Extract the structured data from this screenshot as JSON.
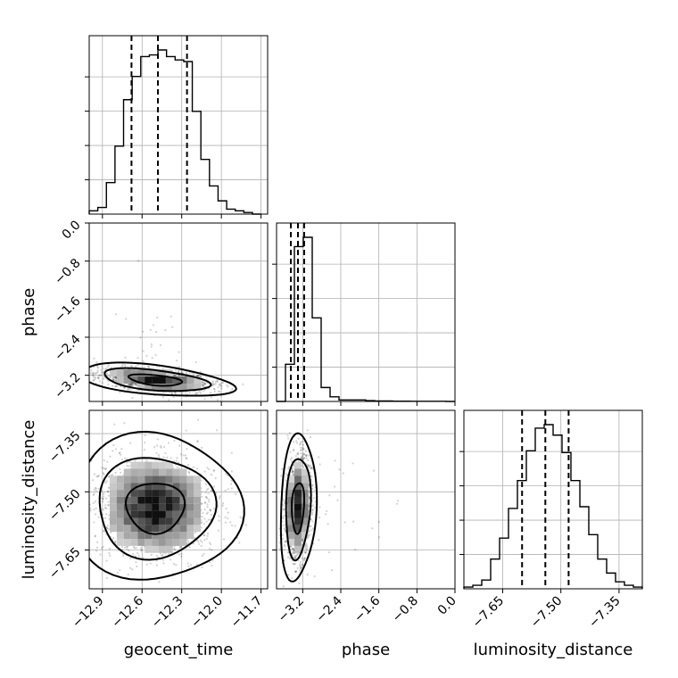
{
  "chart_data": {
    "type": "corner",
    "parameters": [
      "geocent_time",
      "phase",
      "luminosity_distance"
    ],
    "xlabels": [
      "geocent_time",
      "phase",
      "luminosity_distance"
    ],
    "ylabels": [
      "",
      "phase",
      "luminosity_distance"
    ],
    "ranges": {
      "geocent_time": [
        -13.0,
        -11.65
      ],
      "phase": [
        -3.75,
        0.0
      ],
      "luminosity_distance": [
        -7.75,
        -7.29
      ]
    },
    "ticks": {
      "geocent_time": [
        -12.9,
        -12.6,
        -12.3,
        -12.0,
        -11.7
      ],
      "phase": [
        -3.2,
        -2.4,
        -1.6,
        -0.8,
        0.0
      ],
      "luminosity_distance": [
        -7.65,
        -7.5,
        -7.35
      ]
    },
    "tick_labels": {
      "geocent_time": [
        "−12.9",
        "−12.6",
        "−12.3",
        "−12.0",
        "−11.7"
      ],
      "phase": [
        "−3.2",
        "−2.4",
        "−1.6",
        "−0.8",
        "0.0"
      ],
      "luminosity_distance": [
        "−7.65",
        "−7.50",
        "−7.35"
      ]
    },
    "quantiles": {
      "geocent_time": [
        -12.68,
        -12.48,
        -12.26
      ],
      "phase": [
        -3.45,
        -3.3,
        -3.17
      ],
      "luminosity_distance": [
        -7.6,
        -7.54,
        -7.48
      ]
    },
    "histograms": {
      "geocent_time": {
        "bins": [
          -13.0,
          -12.935,
          -12.87,
          -12.805,
          -12.74,
          -12.675,
          -12.61,
          -12.545,
          -12.48,
          -12.415,
          -12.35,
          -12.285,
          -12.22,
          -12.155,
          -12.09,
          -12.025,
          -11.96,
          -11.895,
          -11.83,
          -11.765,
          -11.7
        ],
        "counts": [
          2,
          4,
          19,
          41,
          69,
          83,
          95,
          96,
          99,
          95,
          93,
          92,
          62,
          33,
          17,
          8,
          3,
          2,
          1,
          0
        ]
      },
      "phase": {
        "bins": [
          -3.75,
          -3.5625,
          -3.375,
          -3.1875,
          -3.0,
          -2.8125,
          -2.625,
          -2.4375,
          -2.25,
          -2.0625,
          -1.875,
          -1.6875,
          -1.5,
          -1.3125,
          -1.125,
          -0.9375,
          -0.75,
          -0.5625,
          -0.375,
          -0.1875,
          0.0
        ],
        "counts": [
          0,
          24,
          100,
          106,
          54,
          9,
          3,
          1,
          1,
          1,
          0.5,
          0.3,
          0.3,
          0.2,
          0.2,
          0.1,
          0.1,
          0.1,
          0.1,
          0
        ]
      },
      "luminosity_distance": {
        "bins": [
          -7.75,
          -7.727,
          -7.704,
          -7.681,
          -7.658,
          -7.635,
          -7.612,
          -7.589,
          -7.566,
          -7.543,
          -7.52,
          -7.497,
          -7.474,
          -7.451,
          -7.428,
          -7.405,
          -7.382,
          -7.359,
          -7.336,
          -7.313,
          -7.29
        ],
        "counts": [
          1,
          2,
          5,
          17,
          29,
          46,
          62,
          79,
          92,
          94,
          88,
          78,
          62,
          47,
          31,
          17,
          9,
          4,
          2,
          1
        ]
      }
    },
    "density_2d": [
      {
        "x": "geocent_time",
        "y": "phase",
        "center": [
          -12.5,
          -3.3
        ],
        "spread": [
          0.2,
          0.12
        ],
        "rho": -0.45
      },
      {
        "x": "geocent_time",
        "y": "luminosity_distance",
        "center": [
          -12.5,
          -7.54
        ],
        "spread": [
          0.22,
          0.065
        ],
        "rho": 0.0
      },
      {
        "x": "phase",
        "y": "luminosity_distance",
        "center": [
          -3.3,
          -7.54
        ],
        "spread": [
          0.13,
          0.065
        ],
        "rho": 0.15
      }
    ],
    "grid": true,
    "colors": {
      "line": "#000000",
      "grid": "#b0b0b0",
      "points": "#000000"
    }
  }
}
